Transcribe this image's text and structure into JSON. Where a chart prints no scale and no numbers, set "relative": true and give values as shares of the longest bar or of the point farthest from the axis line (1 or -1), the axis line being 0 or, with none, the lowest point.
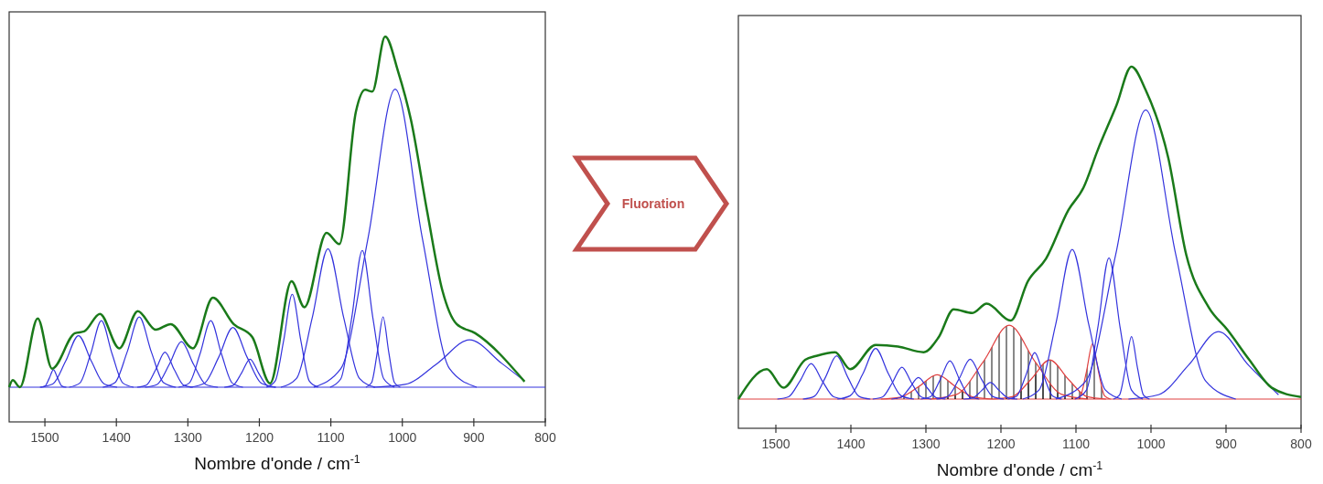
{
  "chart_data": [
    {
      "type": "line",
      "relative": true,
      "xlabel": "Nombre d'onde / cm$^{-1}$",
      "xlim": [
        1550,
        800
      ],
      "xticks": [
        1500,
        1400,
        1300,
        1200,
        1100,
        1000,
        900,
        800
      ],
      "ref_lines": [
        {
          "axis": "y",
          "value": 0,
          "color": "#3333dd"
        }
      ],
      "series": [
        {
          "color": "#3333dd",
          "x": [
            1470,
            1476,
            1482,
            1488,
            1494,
            1500,
            1506
          ],
          "values": [
            0,
            0.003,
            0.025,
            0.05,
            0.025,
            0.003,
            0
          ]
        },
        {
          "color": "#3333dd",
          "x": [
            1399,
            1417,
            1435,
            1453,
            1471,
            1489,
            1507
          ],
          "values": [
            0,
            0.009,
            0.074,
            0.147,
            0.074,
            0.009,
            0
          ]
        },
        {
          "color": "#3333dd",
          "x": [
            1376,
            1391,
            1406,
            1421,
            1436,
            1451,
            1466
          ],
          "values": [
            0,
            0.012,
            0.095,
            0.19,
            0.095,
            0.012,
            0
          ]
        },
        {
          "color": "#3333dd",
          "x": [
            1317,
            1334,
            1351,
            1368,
            1385,
            1402,
            1419
          ],
          "values": [
            0,
            0.013,
            0.1,
            0.2,
            0.1,
            0.013,
            0
          ]
        },
        {
          "color": "#3333dd",
          "x": [
            1293,
            1306,
            1319,
            1332,
            1345,
            1358,
            1371
          ],
          "values": [
            0,
            0.006,
            0.05,
            0.1,
            0.05,
            0.006,
            0
          ]
        },
        {
          "color": "#3333dd",
          "x": [
            1258,
            1275,
            1292,
            1309,
            1326,
            1343,
            1360
          ],
          "values": [
            0,
            0.008,
            0.065,
            0.13,
            0.065,
            0.008,
            0
          ]
        },
        {
          "color": "#3333dd",
          "x": [
            1223,
            1238,
            1253,
            1268,
            1283,
            1298,
            1313
          ],
          "values": [
            0,
            0.012,
            0.095,
            0.19,
            0.095,
            0.012,
            0
          ]
        },
        {
          "color": "#3333dd",
          "x": [
            1177,
            1197,
            1217,
            1237,
            1257,
            1277,
            1297
          ],
          "values": [
            0,
            0.011,
            0.085,
            0.17,
            0.085,
            0.011,
            0
          ]
        },
        {
          "color": "#3333dd",
          "x": [
            1177,
            1189,
            1201,
            1213,
            1225,
            1237,
            1249
          ],
          "values": [
            0,
            0.005,
            0.04,
            0.08,
            0.04,
            0.005,
            0
          ]
        },
        {
          "color": "#3333dd",
          "x": [
            1118,
            1130,
            1142,
            1154,
            1166,
            1178,
            1190
          ],
          "values": [
            0,
            0.017,
            0.133,
            0.265,
            0.133,
            0.017,
            0
          ]
        },
        {
          "color": "#3333dd",
          "x": [
            1038,
            1060,
            1082,
            1104,
            1126,
            1148,
            1170
          ],
          "values": [
            0,
            0.025,
            0.198,
            0.395,
            0.198,
            0.025,
            0
          ]
        },
        {
          "color": "#3333dd",
          "x": [
            1011,
            1026,
            1041,
            1056,
            1071,
            1086,
            1101
          ],
          "values": [
            0,
            0.024,
            0.195,
            0.39,
            0.195,
            0.024,
            0
          ]
        },
        {
          "color": "#3333dd",
          "x": [
            1003,
            1011,
            1019,
            1027,
            1035,
            1043,
            1051
          ],
          "values": [
            0,
            0.013,
            0.1,
            0.2,
            0.1,
            0.013,
            0
          ]
        },
        {
          "color": "#3333dd",
          "x": [
            896,
            934,
            972,
            1010,
            1048,
            1086,
            1124
          ],
          "values": [
            0,
            0.053,
            0.425,
            0.85,
            0.425,
            0.053,
            0
          ]
        },
        {
          "color": "#3333dd",
          "x": [
            830,
            861,
            906,
            951,
            996,
            1041
          ],
          "values": [
            0.019,
            0.068,
            0.135,
            0.068,
            0.008,
            0
          ]
        },
        {
          "color": "#1a7a1a",
          "x": [
            829,
            898,
            924,
            944,
            965,
            988,
            1006,
            1024,
            1042,
            1052,
            1065,
            1088,
            1106,
            1137,
            1155,
            1185,
            1210,
            1236,
            1265,
            1293,
            1324,
            1345,
            1370,
            1396,
            1423,
            1445,
            1458,
            1490,
            1510,
            1535,
            1545,
            1550
          ],
          "values": [
            0.016,
            0.154,
            0.18,
            0.276,
            0.498,
            0.763,
            0.901,
            1,
            0.843,
            0.848,
            0.785,
            0.408,
            0.44,
            0.228,
            0.302,
            0.011,
            0.143,
            0.18,
            0.255,
            0.111,
            0.18,
            0.164,
            0.217,
            0.111,
            0.209,
            0.159,
            0.154,
            0.053,
            0.196,
            0,
            0.02,
            0
          ]
        }
      ]
    },
    {
      "type": "other",
      "title": "Fluoration"
    },
    {
      "type": "line",
      "relative": true,
      "xlabel": "Nombre d'onde / cm$^{-1}$",
      "xlim": [
        1550,
        800
      ],
      "xticks": [
        1500,
        1400,
        1300,
        1200,
        1100,
        1000,
        900,
        800
      ],
      "ref_lines": [
        {
          "axis": "y",
          "value": 0,
          "color": "#e04040"
        }
      ],
      "series": [
        {
          "color": "#e04040",
          "x": [
            1210,
            1235,
            1260,
            1285,
            1310,
            1335,
            1360
          ],
          "values": [
            0,
            0.005,
            0.037,
            0.073,
            0.037,
            0.005,
            0
          ]
        },
        {
          "color": "#e04040",
          "x": [
            1084,
            1119,
            1154,
            1189,
            1224,
            1259,
            1294
          ],
          "values": [
            0,
            0.014,
            0.111,
            0.222,
            0.111,
            0.014,
            0
          ]
        },
        {
          "color": "#e04040",
          "x": [
            1060,
            1085,
            1110,
            1135,
            1160,
            1185,
            1210
          ],
          "values": [
            0,
            0.007,
            0.059,
            0.118,
            0.059,
            0.007,
            0
          ]
        },
        {
          "color": "#e04040",
          "x": [
            1054,
            1062,
            1070,
            1078,
            1086,
            1094,
            1102
          ],
          "values": [
            0,
            0.01,
            0.083,
            0.166,
            0.083,
            0.01,
            0
          ]
        },
        {
          "color": "#3333dd",
          "x": [
            1408,
            1423,
            1438,
            1453,
            1468,
            1483,
            1498
          ],
          "values": [
            0,
            0.007,
            0.054,
            0.107,
            0.054,
            0.007,
            0
          ]
        },
        {
          "color": "#3333dd",
          "x": [
            1374,
            1389,
            1404,
            1419,
            1434,
            1449,
            1464
          ],
          "values": [
            0,
            0.008,
            0.065,
            0.13,
            0.065,
            0.008,
            0
          ]
        },
        {
          "color": "#3333dd",
          "x": [
            1316,
            1333,
            1350,
            1367,
            1384,
            1401,
            1418
          ],
          "values": [
            0,
            0.01,
            0.076,
            0.152,
            0.076,
            0.01,
            0
          ]
        },
        {
          "color": "#3333dd",
          "x": [
            1293,
            1306,
            1319,
            1332,
            1345,
            1358,
            1371
          ],
          "values": [
            0,
            0.006,
            0.048,
            0.096,
            0.048,
            0.006,
            0
          ]
        },
        {
          "color": "#3333dd",
          "x": [
            1274,
            1286,
            1298,
            1310,
            1322,
            1334,
            1346
          ],
          "values": [
            0,
            0.004,
            0.033,
            0.065,
            0.033,
            0.004,
            0
          ]
        },
        {
          "color": "#3333dd",
          "x": [
            1229,
            1242,
            1255,
            1268,
            1281,
            1294,
            1307
          ],
          "values": [
            0,
            0.007,
            0.058,
            0.115,
            0.058,
            0.007,
            0
          ]
        },
        {
          "color": "#3333dd",
          "x": [
            1196,
            1211,
            1226,
            1241,
            1256,
            1271,
            1286
          ],
          "values": [
            0,
            0.008,
            0.06,
            0.12,
            0.06,
            0.008,
            0
          ]
        },
        {
          "color": "#3333dd",
          "x": [
            1178,
            1190,
            1202,
            1214,
            1226,
            1238,
            1250
          ],
          "values": [
            0,
            0.003,
            0.025,
            0.05,
            0.025,
            0.003,
            0
          ]
        },
        {
          "color": "#3333dd",
          "x": [
            1119,
            1131,
            1143,
            1155,
            1167,
            1179,
            1191
          ],
          "values": [
            0,
            0.009,
            0.07,
            0.14,
            0.07,
            0.009,
            0
          ]
        },
        {
          "color": "#3333dd",
          "x": [
            1039,
            1061,
            1083,
            1105,
            1127,
            1149,
            1171
          ],
          "values": [
            0,
            0.028,
            0.225,
            0.45,
            0.225,
            0.028,
            0
          ]
        },
        {
          "color": "#3333dd",
          "x": [
            1011,
            1026,
            1041,
            1056,
            1071,
            1086,
            1101
          ],
          "values": [
            0,
            0.027,
            0.213,
            0.425,
            0.213,
            0.027,
            0
          ]
        },
        {
          "color": "#3333dd",
          "x": [
            1002,
            1010,
            1018,
            1026,
            1034,
            1042,
            1050
          ],
          "values": [
            0,
            0.012,
            0.094,
            0.188,
            0.094,
            0.012,
            0
          ]
        },
        {
          "color": "#3333dd",
          "x": [
            887,
            927,
            967,
            1007,
            1047,
            1087,
            1127
          ],
          "values": [
            0,
            0.054,
            0.435,
            0.87,
            0.435,
            0.054,
            0
          ]
        },
        {
          "color": "#3333dd",
          "x": [
            830,
            870,
            910,
            950,
            990,
            1030
          ],
          "values": [
            0.013,
            0.102,
            0.203,
            0.102,
            0.013,
            0
          ]
        },
        {
          "color": "#1a7a1a",
          "x": [
            800,
            839,
            869,
            898,
            923,
            953,
            977,
            1007,
            1026,
            1046,
            1071,
            1090,
            1110,
            1140,
            1164,
            1187,
            1219,
            1238,
            1263,
            1283,
            1303,
            1337,
            1367,
            1401,
            1421,
            1446,
            1461,
            1490,
            1512,
            1550
          ],
          "values": [
            0.006,
            0.034,
            0.118,
            0.208,
            0.276,
            0.434,
            0.726,
            0.929,
            1,
            0.884,
            0.749,
            0.636,
            0.569,
            0.422,
            0.355,
            0.236,
            0.287,
            0.259,
            0.27,
            0.186,
            0.141,
            0.158,
            0.163,
            0.09,
            0.141,
            0.13,
            0.118,
            0.034,
            0.09,
            0
          ]
        }
      ]
    }
  ]
}
